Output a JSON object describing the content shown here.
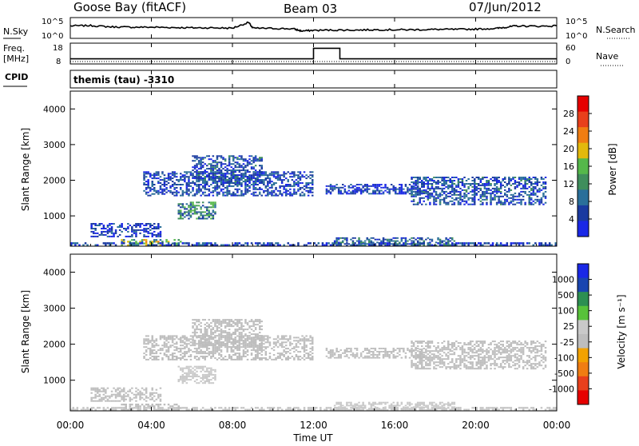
{
  "header": {
    "station": "Goose Bay (fitACF)",
    "beam": "Beam 03",
    "date": "07/Jun/2012"
  },
  "strips": {
    "nsky_label": "N.Sky",
    "nsky_ticks": [
      "10^5",
      "10^0"
    ],
    "nsearch_label": "N.Search",
    "nsearch_ticks": [
      "10^5",
      "10^0"
    ],
    "freq_label": "Freq.",
    "freq_unit": "[MHz]",
    "freq_ticks": [
      "18",
      "8"
    ],
    "nave_label": "Nave",
    "nave_ticks": [
      "60",
      "0"
    ],
    "cpid_label": "CPID",
    "cpid_text": "themis (tau) -3310"
  },
  "colors": {
    "power_scale": [
      "#1a28e6",
      "#1a3aa0",
      "#2a6f9a",
      "#3f8e5c",
      "#55b84a",
      "#e3b90c",
      "#f07d12",
      "#e8401c",
      "#e60000"
    ],
    "velocity_scale": [
      "#e60000",
      "#e8401c",
      "#f07d12",
      "#f2a200",
      "#bdbdbd",
      "#c9c9c9",
      "#58c23a",
      "#2d8f52",
      "#1a45b0",
      "#1a28e6"
    ],
    "ground_scatter": "#bdbdbd"
  },
  "chart_data": [
    {
      "type": "line",
      "title": "N.Sky / N.Search",
      "x_range_hours": [
        0,
        24
      ],
      "series": [
        {
          "name": "N.Sky",
          "x": [
            0,
            1,
            2,
            3,
            4,
            5,
            6,
            7,
            8,
            8.8,
            9,
            10,
            11,
            11.4,
            12,
            13,
            14,
            15,
            16,
            17,
            18,
            19,
            20,
            21,
            21.5,
            22,
            23,
            24
          ],
          "y": [
            3.4,
            3.5,
            3.1,
            3.0,
            3.0,
            2.9,
            2.8,
            2.8,
            2.7,
            4.5,
            2.7,
            2.6,
            2.5,
            1.8,
            2.0,
            2.1,
            2.1,
            2.2,
            2.2,
            2.2,
            2.3,
            2.3,
            2.4,
            2.6,
            3.0,
            3.4,
            3.3,
            3.4
          ]
        }
      ]
    },
    {
      "type": "line",
      "title": "Freq. / Nave",
      "x_range_hours": [
        0,
        24
      ],
      "ylim": [
        8,
        18
      ],
      "series": [
        {
          "name": "Freq.",
          "x": [
            0,
            12,
            12,
            13.3,
            13.3,
            24
          ],
          "y": [
            10,
            10,
            16,
            16,
            10,
            10
          ]
        },
        {
          "name": "Nave",
          "x": [
            0,
            24
          ],
          "y": [
            8,
            8
          ]
        }
      ]
    },
    {
      "type": "heatmap",
      "title": "Power",
      "xlabel": "",
      "ylabel": "Slant Range [km]",
      "x_ticks": [
        "00:00",
        "04:00",
        "08:00",
        "12:00",
        "16:00",
        "20:00",
        "00:00"
      ],
      "y_ticks": [
        "1000",
        "2000",
        "3000",
        "4000"
      ],
      "ylim": [
        150,
        4500
      ],
      "colorbar_label": "Power [dB]",
      "colorbar_ticks": [
        "4",
        "8",
        "12",
        "16",
        "20",
        "24",
        "28"
      ],
      "clim": [
        0,
        30
      ],
      "regions": [
        {
          "t0": 3.6,
          "t1": 12.0,
          "r0": 1550,
          "r1": 2250,
          "v": 5
        },
        {
          "t0": 6.0,
          "t1": 9.5,
          "r0": 1900,
          "r1": 2700,
          "v": 6
        },
        {
          "t0": 1.0,
          "t1": 4.5,
          "r0": 400,
          "r1": 800,
          "v": 4
        },
        {
          "t0": 2.5,
          "t1": 5.5,
          "r0": 150,
          "r1": 350,
          "v": 14
        },
        {
          "t0": 5.3,
          "t1": 7.2,
          "r0": 900,
          "r1": 1400,
          "v": 10
        },
        {
          "t0": 12.6,
          "t1": 17.5,
          "r0": 1600,
          "r1": 1900,
          "v": 4
        },
        {
          "t0": 16.8,
          "t1": 23.5,
          "r0": 1300,
          "r1": 2100,
          "v": 6
        },
        {
          "t0": 0.0,
          "t1": 24.0,
          "r0": 150,
          "r1": 260,
          "v": 5
        },
        {
          "t0": 13.0,
          "t1": 19.0,
          "r0": 150,
          "r1": 400,
          "v": 7
        }
      ]
    },
    {
      "type": "heatmap",
      "title": "Velocity",
      "xlabel": "Time UT",
      "ylabel": "Slant Range [km]",
      "x_ticks": [
        "00:00",
        "04:00",
        "08:00",
        "12:00",
        "16:00",
        "20:00",
        "00:00"
      ],
      "y_ticks": [
        "1000",
        "2000",
        "3000",
        "4000"
      ],
      "ylim": [
        150,
        4500
      ],
      "colorbar_label": "Velocity [m s⁻¹]",
      "colorbar_ticks": [
        "1000",
        "500",
        "100",
        "25",
        "-25",
        "-100",
        "-500",
        "-1000"
      ],
      "clim": [
        -1000,
        1000
      ],
      "regions": [
        {
          "t0": 3.6,
          "t1": 12.0,
          "r0": 1550,
          "r1": 2250,
          "v": 0
        },
        {
          "t0": 6.0,
          "t1": 9.5,
          "r0": 1900,
          "r1": 2700,
          "v": 0
        },
        {
          "t0": 1.0,
          "t1": 4.5,
          "r0": 400,
          "r1": 800,
          "v": 0
        },
        {
          "t0": 2.5,
          "t1": 5.5,
          "r0": 150,
          "r1": 350,
          "v": -150
        },
        {
          "t0": 5.3,
          "t1": 7.2,
          "r0": 900,
          "r1": 1400,
          "v": 60
        },
        {
          "t0": 12.6,
          "t1": 17.5,
          "r0": 1600,
          "r1": 1900,
          "v": 0
        },
        {
          "t0": 16.8,
          "t1": 23.5,
          "r0": 1300,
          "r1": 2100,
          "v": 0
        },
        {
          "t0": 0.0,
          "t1": 24.0,
          "r0": 150,
          "r1": 260,
          "v": 50
        },
        {
          "t0": 13.0,
          "t1": 19.0,
          "r0": 150,
          "r1": 400,
          "v": 80
        }
      ]
    }
  ]
}
